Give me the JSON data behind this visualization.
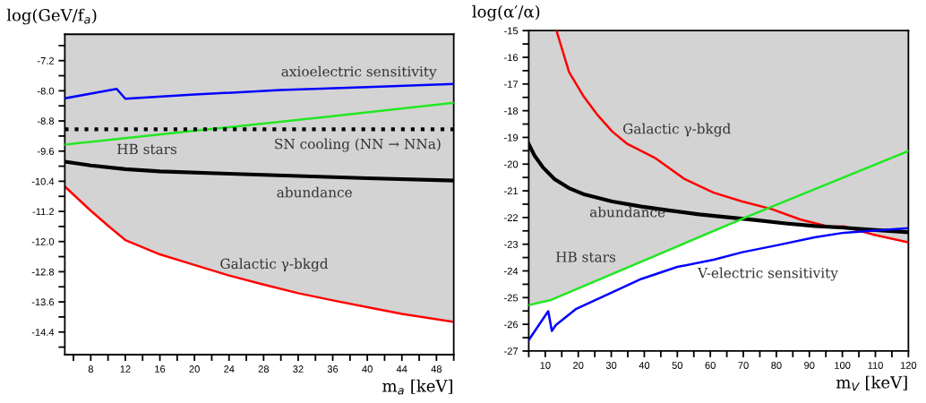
{
  "chart_data": [
    {
      "type": "line",
      "xlabel": "m$_{a}$ [keV]",
      "ylabel": "log(GeV/f$_{a}$)",
      "xlim": [
        5,
        50
      ],
      "ylim": [
        -15.0,
        -6.5
      ],
      "xticks": [
        {
          "value": 6,
          "label": null
        },
        8,
        {
          "value": 10,
          "label": null
        },
        12,
        {
          "value": 14,
          "label": null
        },
        16,
        {
          "value": 18,
          "label": null
        },
        20,
        {
          "value": 22,
          "label": null
        },
        24,
        {
          "value": 26,
          "label": null
        },
        28,
        {
          "value": 30,
          "label": null
        },
        32,
        {
          "value": 34,
          "label": null
        },
        36,
        {
          "value": 38,
          "label": null
        },
        40,
        {
          "value": 42,
          "label": null
        },
        44,
        {
          "value": 46,
          "label": null
        },
        48,
        {
          "value": 50,
          "label": null
        }
      ],
      "yticks": [
        {
          "value": -6.8,
          "label": null
        },
        -7.2,
        {
          "value": -7.6,
          "label": null
        },
        {
          "value": -8.0,
          "label": "-8.0"
        },
        {
          "value": -8.4,
          "label": null
        },
        -8.8,
        {
          "value": -9.2,
          "label": null
        },
        -9.6,
        {
          "value": -10.0,
          "label": null
        },
        -10.4,
        {
          "value": -10.8,
          "label": null
        },
        -11.2,
        {
          "value": -11.6,
          "label": null
        },
        {
          "value": -12.0,
          "label": "-12.0"
        },
        {
          "value": -12.4,
          "label": null
        },
        -12.8,
        {
          "value": -13.2,
          "label": null
        },
        -13.6,
        {
          "value": -14.0,
          "label": null
        },
        -14.4,
        {
          "value": -14.8,
          "label": null
        }
      ],
      "grid": false,
      "legend": false,
      "series": [
        {
          "color": "#0000ff",
          "x": [
            5,
            11,
            12,
            20,
            30,
            40,
            50
          ],
          "values": [
            -8.2,
            -7.95,
            -8.21,
            -8.1,
            -7.98,
            -7.9,
            -7.82
          ]
        },
        {
          "color": "#22e822",
          "x": [
            5,
            20,
            35,
            50
          ],
          "values": [
            -9.43,
            -9.06,
            -8.7,
            -8.32
          ]
        },
        {
          "color": "#000000",
          "x": [
            5,
            8,
            12,
            16,
            24,
            32,
            40,
            50
          ],
          "values": [
            -9.88,
            -9.98,
            -10.08,
            -10.14,
            -10.2,
            -10.26,
            -10.32,
            -10.38
          ]
        },
        {
          "type": "area",
          "color": "#ff0000",
          "x": [
            5,
            8,
            10,
            12,
            16,
            20,
            24,
            28,
            32,
            36,
            40,
            44,
            50
          ],
          "values": [
            -10.54,
            -11.18,
            -11.58,
            -11.96,
            -12.34,
            -12.62,
            -12.9,
            -13.14,
            -13.37,
            -13.56,
            -13.74,
            -13.92,
            -14.13
          ]
        }
      ],
      "ref_lines": [
        {
          "axis": "y",
          "value": -9.02,
          "color": "#000000",
          "line_style": "dotted"
        }
      ],
      "annotations": [
        "axioelectric sensitivity",
        "HB stars",
        "SN cooling (NN → NNa)",
        "abundance",
        "Galactic γ-bkgd"
      ]
    },
    {
      "type": "line",
      "xlabel": "m$_{V}$ [keV]",
      "ylabel": "log(α′/α)",
      "xlim": [
        5,
        120
      ],
      "ylim": [
        -27,
        -15
      ],
      "xticks": [
        {
          "value": 5,
          "label": null
        },
        10,
        {
          "value": 15,
          "label": null
        },
        20,
        {
          "value": 25,
          "label": null
        },
        30,
        {
          "value": 35,
          "label": null
        },
        40,
        {
          "value": 45,
          "label": null
        },
        50,
        {
          "value": 55,
          "label": null
        },
        60,
        {
          "value": 65,
          "label": null
        },
        70,
        {
          "value": 75,
          "label": null
        },
        80,
        {
          "value": 85,
          "label": null
        },
        90,
        {
          "value": 95,
          "label": null
        },
        100,
        {
          "value": 105,
          "label": null
        },
        110,
        {
          "value": 115,
          "label": null
        },
        120
      ],
      "yticks": [
        -27,
        {
          "value": -26.5,
          "label": null
        },
        -26,
        {
          "value": -25.5,
          "label": null
        },
        -25,
        {
          "value": -24.5,
          "label": null
        },
        -24,
        {
          "value": -23.5,
          "label": null
        },
        -23,
        {
          "value": -22.5,
          "label": null
        },
        -22,
        {
          "value": -21.5,
          "label": null
        },
        -21,
        {
          "value": -20.5,
          "label": null
        },
        -20,
        {
          "value": -19.5,
          "label": null
        },
        -19,
        {
          "value": -18.5,
          "label": null
        },
        -18,
        {
          "value": -17.5,
          "label": null
        },
        -17,
        {
          "value": -16.5,
          "label": null
        },
        -16,
        {
          "value": -15.5,
          "label": null
        },
        -15
      ],
      "grid": false,
      "legend": false,
      "series": [
        {
          "type": "area",
          "color": "#d3d3d3",
          "x": [
            5,
            11.9,
            71.9,
            74.1,
            82.8,
            91.6,
            100.4,
            109.1,
            120
          ],
          "values": [
            -25.28,
            -25.08,
            -21.93,
            -22.1,
            -22.22,
            -22.32,
            -22.38,
            -22.63,
            -22.93
          ]
        },
        {
          "color": "#ff0000",
          "x": [
            13.4,
            17.2,
            21.5,
            25.9,
            30.3,
            34.7,
            43.4,
            52.2,
            61.0,
            69.7,
            78.5,
            87.2,
            96.0,
            100.4,
            109.1,
            120
          ],
          "values": [
            -15,
            -16.55,
            -17.44,
            -18.17,
            -18.78,
            -19.23,
            -19.78,
            -20.56,
            -21.07,
            -21.4,
            -21.68,
            -22.07,
            -22.35,
            -22.33,
            -22.63,
            -22.93
          ]
        },
        {
          "color": "#000000",
          "x": [
            5,
            6.7,
            9.3,
            12.8,
            17.2,
            21.5,
            30.3,
            39.1,
            47.8,
            56.6,
            65.3,
            74.1,
            82.8,
            91.6,
            100.4,
            109.1,
            120
          ],
          "values": [
            -19.25,
            -19.67,
            -20.12,
            -20.56,
            -20.9,
            -21.12,
            -21.4,
            -21.59,
            -21.74,
            -21.88,
            -21.99,
            -22.1,
            -22.22,
            -22.32,
            -22.38,
            -22.46,
            -22.55
          ]
        },
        {
          "color": "#22e822",
          "x": [
            5,
            11.9,
            71.9,
            120
          ],
          "values": [
            -25.28,
            -25.08,
            -21.93,
            -19.51
          ]
        },
        {
          "color": "#0000ff",
          "x": [
            5,
            10.9,
            12.0,
            13.2,
            19.4,
            30.3,
            39.1,
            50,
            61,
            69.7,
            80.2,
            91.6,
            100.4,
            113.5,
            120
          ],
          "values": [
            -26.59,
            -25.51,
            -26.25,
            -26.03,
            -25.42,
            -24.8,
            -24.3,
            -23.85,
            -23.58,
            -23.3,
            -23.04,
            -22.74,
            -22.57,
            -22.46,
            -22.4
          ]
        }
      ],
      "annotations": [
        "Galactic γ-bkgd",
        "abundance",
        "HB stars",
        "V-electric sensitivity"
      ]
    }
  ]
}
